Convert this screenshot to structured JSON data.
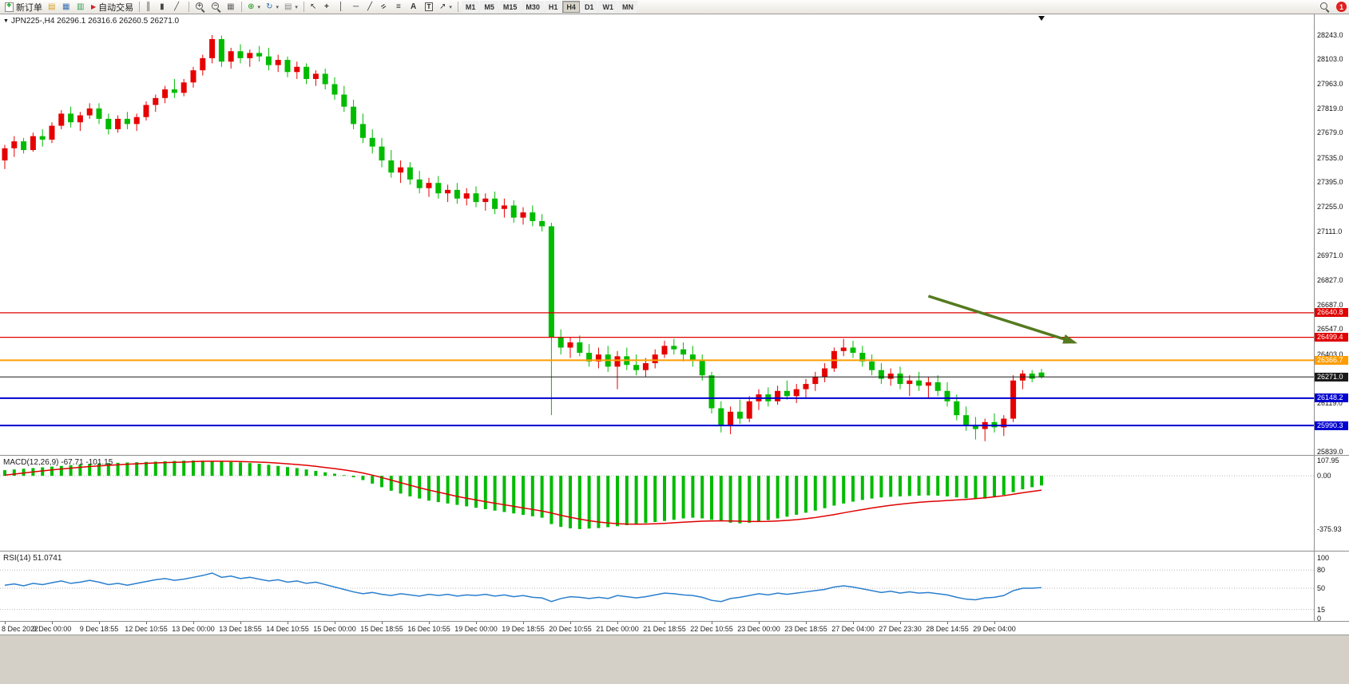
{
  "toolbar": {
    "new_order_label": "新订单",
    "auto_trading_label": "自动交易",
    "timeframe_labels": [
      "M1",
      "M5",
      "M15",
      "M30",
      "H1",
      "H4",
      "D1",
      "W1",
      "MN"
    ],
    "active_timeframe": "H4",
    "notification_count": "1",
    "icons": {
      "collapse": "▼",
      "market_watch": "▤",
      "data_window": "▦",
      "navigator": "▥",
      "auto_trading": "▶",
      "bar_chart": "║",
      "candlestick_chart": "▮",
      "line_chart": "╱",
      "tile_windows": "▦",
      "indicators": "⊕",
      "periods": "↻",
      "templates": "▤",
      "cursor": "↖",
      "crosshair": "+",
      "vertical_line": "│",
      "horizontal_line": "─",
      "trendline": "╱",
      "channel": "=",
      "fibonacci": "≡",
      "text": "A",
      "text_label": "T",
      "arrows": "↗",
      "dropdown": "▾"
    }
  },
  "chart_data": [
    {
      "type": "candlestick",
      "title": "JPN225-,H4 26296.1 26316.6 26260.5 26271.0",
      "symbol": "JPN225-",
      "timeframe": "H4",
      "current_bar": {
        "open": 26296.1,
        "high": 26316.6,
        "low": 26260.5,
        "close": 26271.0
      },
      "up_color": "#e60000",
      "down_color": "#00bb00",
      "y_axis_labels": [
        "28243.0",
        "28103.0",
        "27963.0",
        "27819.0",
        "27679.0",
        "27535.0",
        "27395.0",
        "27255.0",
        "27111.0",
        "26971.0",
        "26827.0",
        "26687.0",
        "26547.0",
        "26403.0",
        "26119.0",
        "25839.0"
      ],
      "x_axis_labels": [
        "8 Dec 2022",
        "9 Dec 00:00",
        "9 Dec 18:55",
        "12 Dec 10:55",
        "13 Dec 00:00",
        "13 Dec 18:55",
        "14 Dec 10:55",
        "15 Dec 00:00",
        "15 Dec 18:55",
        "16 Dec 10:55",
        "19 Dec 00:00",
        "19 Dec 18:55",
        "20 Dec 10:55",
        "21 Dec 00:00",
        "21 Dec 18:55",
        "22 Dec 10:55",
        "23 Dec 00:00",
        "23 Dec 18:55",
        "27 Dec 04:00",
        "27 Dec 23:30",
        "28 Dec 14:55",
        "29 Dec 04:00"
      ],
      "horizontal_lines": [
        {
          "price": 26640.8,
          "label": "26640.8",
          "color": "#e00000",
          "thickness": 1.2
        },
        {
          "price": 26499.4,
          "label": "26499.4",
          "color": "#e00000",
          "thickness": 1.2
        },
        {
          "price": 26366.7,
          "label": "26366.7",
          "color": "#ff9c00",
          "thickness": 2
        },
        {
          "price": 26271.0,
          "label": "26271.0",
          "color": "#1a1a1a",
          "thickness": 1
        },
        {
          "price": 26148.2,
          "label": "26148.2",
          "color": "#0000d0",
          "thickness": 2
        },
        {
          "price": 25990.3,
          "label": "25990.3",
          "color": "#0000d0",
          "thickness": 2
        }
      ],
      "trend_arrow": {
        "from_bar": 98,
        "from_price": 26737,
        "to_bar": 113.5,
        "to_price": 26470,
        "color": "#557a1f"
      },
      "candles_ohlc": [
        [
          27520,
          27610,
          27470,
          27590
        ],
        [
          27590,
          27660,
          27540,
          27630
        ],
        [
          27630,
          27650,
          27560,
          27580
        ],
        [
          27580,
          27680,
          27570,
          27660
        ],
        [
          27660,
          27700,
          27600,
          27640
        ],
        [
          27640,
          27740,
          27620,
          27720
        ],
        [
          27720,
          27810,
          27700,
          27790
        ],
        [
          27790,
          27830,
          27710,
          27740
        ],
        [
          27740,
          27800,
          27690,
          27780
        ],
        [
          27780,
          27850,
          27760,
          27820
        ],
        [
          27820,
          27850,
          27730,
          27760
        ],
        [
          27760,
          27790,
          27670,
          27700
        ],
        [
          27700,
          27780,
          27680,
          27760
        ],
        [
          27760,
          27800,
          27700,
          27730
        ],
        [
          27730,
          27790,
          27690,
          27770
        ],
        [
          27770,
          27860,
          27750,
          27840
        ],
        [
          27840,
          27900,
          27800,
          27880
        ],
        [
          27880,
          27950,
          27850,
          27930
        ],
        [
          27930,
          27990,
          27880,
          27910
        ],
        [
          27910,
          27990,
          27890,
          27970
        ],
        [
          27970,
          28060,
          27940,
          28040
        ],
        [
          28040,
          28130,
          28010,
          28110
        ],
        [
          28110,
          28243,
          28080,
          28220
        ],
        [
          28220,
          28240,
          28060,
          28090
        ],
        [
          28090,
          28170,
          28050,
          28150
        ],
        [
          28150,
          28190,
          28080,
          28110
        ],
        [
          28110,
          28160,
          28060,
          28140
        ],
        [
          28140,
          28180,
          28090,
          28120
        ],
        [
          28120,
          28170,
          28040,
          28070
        ],
        [
          28070,
          28130,
          28030,
          28100
        ],
        [
          28100,
          28120,
          28000,
          28030
        ],
        [
          28030,
          28090,
          27990,
          28060
        ],
        [
          28060,
          28080,
          27960,
          27990
        ],
        [
          27990,
          28040,
          27950,
          28020
        ],
        [
          28020,
          28050,
          27930,
          27960
        ],
        [
          27960,
          28000,
          27870,
          27900
        ],
        [
          27900,
          27950,
          27800,
          27830
        ],
        [
          27830,
          27870,
          27700,
          27730
        ],
        [
          27730,
          27790,
          27620,
          27650
        ],
        [
          27650,
          27700,
          27560,
          27600
        ],
        [
          27600,
          27650,
          27480,
          27520
        ],
        [
          27520,
          27580,
          27420,
          27450
        ],
        [
          27450,
          27520,
          27390,
          27480
        ],
        [
          27480,
          27510,
          27380,
          27410
        ],
        [
          27410,
          27460,
          27330,
          27360
        ],
        [
          27360,
          27420,
          27310,
          27390
        ],
        [
          27390,
          27430,
          27300,
          27330
        ],
        [
          27330,
          27380,
          27280,
          27350
        ],
        [
          27350,
          27390,
          27270,
          27300
        ],
        [
          27300,
          27360,
          27260,
          27330
        ],
        [
          27330,
          27370,
          27250,
          27280
        ],
        [
          27280,
          27330,
          27230,
          27300
        ],
        [
          27300,
          27340,
          27210,
          27240
        ],
        [
          27240,
          27300,
          27190,
          27260
        ],
        [
          27260,
          27290,
          27160,
          27190
        ],
        [
          27190,
          27250,
          27150,
          27220
        ],
        [
          27220,
          27260,
          27140,
          27170
        ],
        [
          27170,
          27210,
          27110,
          27140
        ],
        [
          27140,
          27160,
          26050,
          26500
        ],
        [
          26500,
          26545,
          26400,
          26440
        ],
        [
          26440,
          26500,
          26380,
          26470
        ],
        [
          26470,
          26510,
          26390,
          26410
        ],
        [
          26410,
          26460,
          26330,
          26360
        ],
        [
          26360,
          26440,
          26320,
          26400
        ],
        [
          26400,
          26450,
          26300,
          26330
        ],
        [
          26330,
          26420,
          26200,
          26390
        ],
        [
          26390,
          26440,
          26310,
          26340
        ],
        [
          26340,
          26400,
          26280,
          26310
        ],
        [
          26310,
          26380,
          26270,
          26350
        ],
        [
          26350,
          26430,
          26320,
          26400
        ],
        [
          26400,
          26480,
          26380,
          26450
        ],
        [
          26450,
          26490,
          26400,
          26430
        ],
        [
          26430,
          26470,
          26360,
          26400
        ],
        [
          26400,
          26450,
          26330,
          26370
        ],
        [
          26370,
          26400,
          26250,
          26280
        ],
        [
          26280,
          26300,
          26060,
          26090
        ],
        [
          26090,
          26130,
          25950,
          25990
        ],
        [
          25990,
          26100,
          25940,
          26070
        ],
        [
          26070,
          26140,
          26000,
          26030
        ],
        [
          26030,
          26160,
          26010,
          26130
        ],
        [
          26130,
          26200,
          26080,
          26170
        ],
        [
          26170,
          26210,
          26100,
          26130
        ],
        [
          26130,
          26220,
          26110,
          26190
        ],
        [
          26190,
          26250,
          26140,
          26160
        ],
        [
          26160,
          26230,
          26120,
          26200
        ],
        [
          26200,
          26260,
          26150,
          26230
        ],
        [
          26230,
          26300,
          26190,
          26270
        ],
        [
          26270,
          26350,
          26240,
          26320
        ],
        [
          26320,
          26440,
          26300,
          26420
        ],
        [
          26420,
          26490,
          26390,
          26440
        ],
        [
          26440,
          26480,
          26380,
          26410
        ],
        [
          26410,
          26450,
          26330,
          26360
        ],
        [
          26360,
          26400,
          26280,
          26310
        ],
        [
          26310,
          26350,
          26230,
          26260
        ],
        [
          26260,
          26320,
          26220,
          26290
        ],
        [
          26290,
          26330,
          26200,
          26230
        ],
        [
          26230,
          26280,
          26160,
          26250
        ],
        [
          26250,
          26300,
          26190,
          26220
        ],
        [
          26220,
          26270,
          26150,
          26240
        ],
        [
          26240,
          26280,
          26160,
          26190
        ],
        [
          26190,
          26240,
          26100,
          26130
        ],
        [
          26130,
          26170,
          26020,
          26050
        ],
        [
          26050,
          26100,
          25960,
          25990
        ],
        [
          25990,
          26040,
          25910,
          25970
        ],
        [
          25970,
          26030,
          25900,
          26010
        ],
        [
          26010,
          26060,
          25950,
          25980
        ],
        [
          25980,
          26050,
          25930,
          26030
        ],
        [
          26030,
          26280,
          26010,
          26250
        ],
        [
          26250,
          26310,
          26200,
          26290
        ],
        [
          26290,
          26310,
          26240,
          26260
        ],
        [
          26296.1,
          26316.6,
          26260.5,
          26271.0
        ]
      ]
    },
    {
      "type": "bar",
      "name": "MACD",
      "title": "MACD(12,26,9) -67.71 -101.15",
      "main_value": -67.71,
      "signal_value": -101.15,
      "y_axis_labels": [
        "107.95",
        "0.00",
        "-375.93"
      ],
      "bar_color": "#00bb00",
      "signal_color": "#e00000",
      "histogram": [
        40,
        45,
        50,
        55,
        60,
        65,
        70,
        75,
        80,
        85,
        88,
        90,
        92,
        94,
        96,
        98,
        100,
        103,
        105,
        107,
        108,
        107,
        105,
        102,
        98,
        95,
        90,
        85,
        78,
        70,
        62,
        55,
        45,
        35,
        25,
        15,
        5,
        -10,
        -30,
        -55,
        -80,
        -105,
        -125,
        -145,
        -160,
        -175,
        -185,
        -195,
        -205,
        -215,
        -225,
        -235,
        -245,
        -255,
        -265,
        -275,
        -285,
        -295,
        -340,
        -360,
        -370,
        -375,
        -372,
        -368,
        -362,
        -355,
        -348,
        -340,
        -332,
        -325,
        -318,
        -310,
        -300,
        -295,
        -300,
        -310,
        -320,
        -330,
        -335,
        -330,
        -322,
        -312,
        -300,
        -288,
        -275,
        -260,
        -245,
        -228,
        -210,
        -195,
        -182,
        -170,
        -160,
        -152,
        -148,
        -145,
        -142,
        -140,
        -138,
        -140,
        -145,
        -152,
        -158,
        -162,
        -160,
        -150,
        -135,
        -115,
        -95,
        -80,
        -67.71
      ],
      "signal": [
        5,
        12,
        20,
        28,
        35,
        42,
        48,
        54,
        60,
        66,
        70,
        74,
        78,
        82,
        85,
        88,
        91,
        93,
        95,
        97,
        100,
        102,
        103,
        103,
        102,
        101,
        99,
        97,
        94,
        90,
        85,
        80,
        74,
        67,
        59,
        51,
        42,
        32,
        20,
        5,
        -12,
        -30,
        -48,
        -66,
        -84,
        -100,
        -115,
        -130,
        -145,
        -158,
        -170,
        -182,
        -193,
        -204,
        -215,
        -226,
        -237,
        -248,
        -262,
        -278,
        -292,
        -305,
        -316,
        -325,
        -332,
        -337,
        -340,
        -341,
        -340,
        -338,
        -335,
        -331,
        -327,
        -323,
        -320,
        -318,
        -317,
        -318,
        -320,
        -322,
        -322,
        -321,
        -318,
        -314,
        -309,
        -302,
        -294,
        -284,
        -273,
        -261,
        -249,
        -238,
        -227,
        -217,
        -208,
        -200,
        -193,
        -187,
        -182,
        -178,
        -174,
        -170,
        -166,
        -161,
        -155,
        -148,
        -140,
        -130,
        -119,
        -110,
        -101.15
      ]
    },
    {
      "type": "line",
      "name": "RSI",
      "title": "RSI(14) 51.0741",
      "current_value": 51.0741,
      "y_axis_labels": [
        "100",
        "80",
        "50",
        "15",
        "0"
      ],
      "levels": [
        80,
        50,
        15
      ],
      "ylim": [
        0,
        100
      ],
      "line_color": "#2a7fce",
      "values": [
        55,
        57,
        54,
        58,
        56,
        59,
        62,
        58,
        60,
        63,
        60,
        56,
        58,
        55,
        58,
        61,
        64,
        66,
        63,
        65,
        68,
        71,
        75,
        68,
        70,
        66,
        68,
        65,
        62,
        64,
        60,
        62,
        58,
        60,
        56,
        52,
        48,
        44,
        41,
        43,
        40,
        38,
        41,
        39,
        37,
        40,
        38,
        40,
        37,
        39,
        38,
        40,
        37,
        39,
        36,
        38,
        35,
        34,
        28,
        33,
        36,
        35,
        33,
        35,
        33,
        38,
        36,
        34,
        36,
        39,
        42,
        41,
        39,
        38,
        35,
        30,
        28,
        33,
        35,
        38,
        41,
        39,
        42,
        40,
        42,
        44,
        46,
        48,
        52,
        54,
        52,
        49,
        46,
        43,
        45,
        42,
        44,
        42,
        43,
        41,
        39,
        35,
        32,
        31,
        34,
        35,
        38,
        46,
        50,
        50,
        51.07
      ]
    }
  ]
}
